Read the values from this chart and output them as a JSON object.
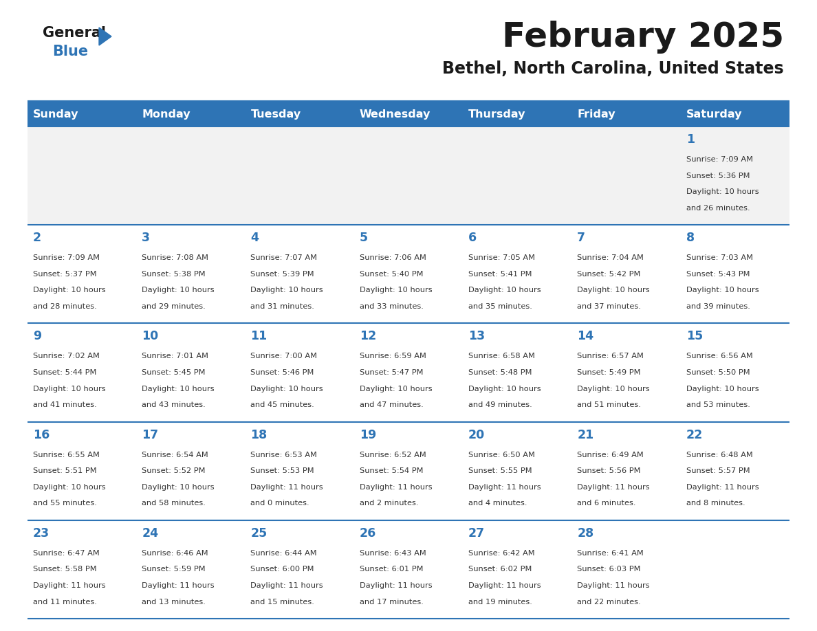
{
  "title": "February 2025",
  "subtitle": "Bethel, North Carolina, United States",
  "header_bg": "#2E74B5",
  "header_text_color": "#FFFFFF",
  "cell_bg_light": "#F2F2F2",
  "cell_bg_white": "#FFFFFF",
  "text_color": "#333333",
  "day_number_color": "#2E74B5",
  "line_color": "#2E74B5",
  "days_of_week": [
    "Sunday",
    "Monday",
    "Tuesday",
    "Wednesday",
    "Thursday",
    "Friday",
    "Saturday"
  ],
  "calendar": [
    [
      {
        "day": null,
        "sunrise": null,
        "sunset": null,
        "daylight": null
      },
      {
        "day": null,
        "sunrise": null,
        "sunset": null,
        "daylight": null
      },
      {
        "day": null,
        "sunrise": null,
        "sunset": null,
        "daylight": null
      },
      {
        "day": null,
        "sunrise": null,
        "sunset": null,
        "daylight": null
      },
      {
        "day": null,
        "sunrise": null,
        "sunset": null,
        "daylight": null
      },
      {
        "day": null,
        "sunrise": null,
        "sunset": null,
        "daylight": null
      },
      {
        "day": 1,
        "sunrise": "7:09 AM",
        "sunset": "5:36 PM",
        "daylight": "10 hours and 26 minutes."
      }
    ],
    [
      {
        "day": 2,
        "sunrise": "7:09 AM",
        "sunset": "5:37 PM",
        "daylight": "10 hours and 28 minutes."
      },
      {
        "day": 3,
        "sunrise": "7:08 AM",
        "sunset": "5:38 PM",
        "daylight": "10 hours and 29 minutes."
      },
      {
        "day": 4,
        "sunrise": "7:07 AM",
        "sunset": "5:39 PM",
        "daylight": "10 hours and 31 minutes."
      },
      {
        "day": 5,
        "sunrise": "7:06 AM",
        "sunset": "5:40 PM",
        "daylight": "10 hours and 33 minutes."
      },
      {
        "day": 6,
        "sunrise": "7:05 AM",
        "sunset": "5:41 PM",
        "daylight": "10 hours and 35 minutes."
      },
      {
        "day": 7,
        "sunrise": "7:04 AM",
        "sunset": "5:42 PM",
        "daylight": "10 hours and 37 minutes."
      },
      {
        "day": 8,
        "sunrise": "7:03 AM",
        "sunset": "5:43 PM",
        "daylight": "10 hours and 39 minutes."
      }
    ],
    [
      {
        "day": 9,
        "sunrise": "7:02 AM",
        "sunset": "5:44 PM",
        "daylight": "10 hours and 41 minutes."
      },
      {
        "day": 10,
        "sunrise": "7:01 AM",
        "sunset": "5:45 PM",
        "daylight": "10 hours and 43 minutes."
      },
      {
        "day": 11,
        "sunrise": "7:00 AM",
        "sunset": "5:46 PM",
        "daylight": "10 hours and 45 minutes."
      },
      {
        "day": 12,
        "sunrise": "6:59 AM",
        "sunset": "5:47 PM",
        "daylight": "10 hours and 47 minutes."
      },
      {
        "day": 13,
        "sunrise": "6:58 AM",
        "sunset": "5:48 PM",
        "daylight": "10 hours and 49 minutes."
      },
      {
        "day": 14,
        "sunrise": "6:57 AM",
        "sunset": "5:49 PM",
        "daylight": "10 hours and 51 minutes."
      },
      {
        "day": 15,
        "sunrise": "6:56 AM",
        "sunset": "5:50 PM",
        "daylight": "10 hours and 53 minutes."
      }
    ],
    [
      {
        "day": 16,
        "sunrise": "6:55 AM",
        "sunset": "5:51 PM",
        "daylight": "10 hours and 55 minutes."
      },
      {
        "day": 17,
        "sunrise": "6:54 AM",
        "sunset": "5:52 PM",
        "daylight": "10 hours and 58 minutes."
      },
      {
        "day": 18,
        "sunrise": "6:53 AM",
        "sunset": "5:53 PM",
        "daylight": "11 hours and 0 minutes."
      },
      {
        "day": 19,
        "sunrise": "6:52 AM",
        "sunset": "5:54 PM",
        "daylight": "11 hours and 2 minutes."
      },
      {
        "day": 20,
        "sunrise": "6:50 AM",
        "sunset": "5:55 PM",
        "daylight": "11 hours and 4 minutes."
      },
      {
        "day": 21,
        "sunrise": "6:49 AM",
        "sunset": "5:56 PM",
        "daylight": "11 hours and 6 minutes."
      },
      {
        "day": 22,
        "sunrise": "6:48 AM",
        "sunset": "5:57 PM",
        "daylight": "11 hours and 8 minutes."
      }
    ],
    [
      {
        "day": 23,
        "sunrise": "6:47 AM",
        "sunset": "5:58 PM",
        "daylight": "11 hours and 11 minutes."
      },
      {
        "day": 24,
        "sunrise": "6:46 AM",
        "sunset": "5:59 PM",
        "daylight": "11 hours and 13 minutes."
      },
      {
        "day": 25,
        "sunrise": "6:44 AM",
        "sunset": "6:00 PM",
        "daylight": "11 hours and 15 minutes."
      },
      {
        "day": 26,
        "sunrise": "6:43 AM",
        "sunset": "6:01 PM",
        "daylight": "11 hours and 17 minutes."
      },
      {
        "day": 27,
        "sunrise": "6:42 AM",
        "sunset": "6:02 PM",
        "daylight": "11 hours and 19 minutes."
      },
      {
        "day": 28,
        "sunrise": "6:41 AM",
        "sunset": "6:03 PM",
        "daylight": "11 hours and 22 minutes."
      },
      {
        "day": null,
        "sunrise": null,
        "sunset": null,
        "daylight": null
      }
    ]
  ]
}
